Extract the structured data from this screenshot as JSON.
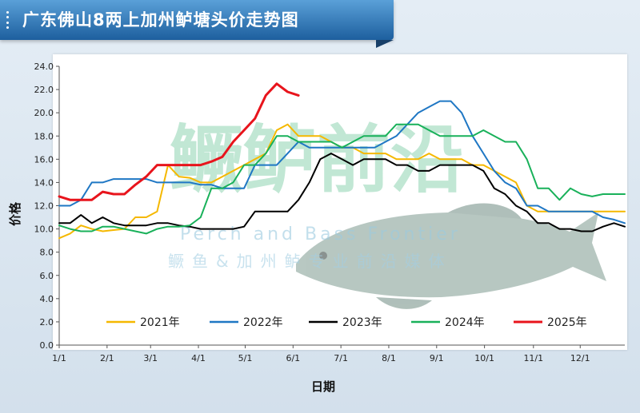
{
  "title": "广东佛山8两上加州鲈塘头价走势图",
  "watermark": {
    "brand": "鳜鲈前沿",
    "english": "Perch and Bass Frontier",
    "tagline": "鳜鱼&加州鲈专业前沿媒体"
  },
  "colors": {
    "banner": "#2d77b8",
    "2021年": "#f5b800",
    "2022年": "#1f77c4",
    "2023年": "#000000",
    "2024年": "#19b15a",
    "2025年": "#e8141c"
  },
  "chart_data": {
    "type": "line",
    "title": "广东佛山8两上加州鲈塘头价走势图",
    "xlabel": "日期",
    "ylabel": "价格",
    "ylim": [
      0,
      24
    ],
    "yticks": [
      "0.0",
      "2.0",
      "4.0",
      "6.0",
      "8.0",
      "10.0",
      "12.0",
      "14.0",
      "16.0",
      "18.0",
      "20.0",
      "22.0",
      "24.0"
    ],
    "xlim": [
      1,
      53
    ],
    "xticks": [
      "1/1",
      "2/1",
      "3/1",
      "4/1",
      "5/1",
      "6/1",
      "7/1",
      "8/1",
      "9/1",
      "10/1",
      "11/1",
      "12/1"
    ],
    "xtick_weeks": [
      1,
      5.4,
      9.4,
      13.8,
      18.1,
      22.5,
      26.9,
      31.3,
      35.7,
      40.1,
      44.6,
      48.9
    ],
    "x_unit": "week of year",
    "grid": false,
    "legend": "bottom",
    "series": [
      {
        "name": "2021年",
        "x": [
          1,
          2,
          3,
          4,
          5,
          6,
          7,
          8,
          9,
          10,
          11,
          11.5,
          12,
          13,
          14,
          15,
          16,
          17,
          18,
          19,
          20,
          21,
          22,
          23,
          24,
          25,
          26,
          27,
          28,
          29,
          30,
          31,
          32,
          33,
          34,
          35,
          36,
          37,
          38,
          39,
          40,
          41,
          42,
          43,
          44,
          45,
          46,
          47,
          48,
          49,
          50,
          51,
          53
        ],
        "y": [
          9.2,
          9.6,
          10.3,
          10.0,
          9.8,
          9.9,
          10.0,
          11.0,
          11.0,
          11.5,
          15.5,
          15.0,
          14.5,
          14.4,
          14.0,
          14.0,
          14.5,
          15.0,
          15.5,
          16.0,
          16.5,
          18.5,
          19.0,
          18.0,
          18.0,
          18.0,
          17.5,
          17.0,
          17.0,
          16.5,
          16.5,
          16.5,
          16.0,
          16.0,
          16.0,
          16.5,
          16.0,
          16.0,
          16.0,
          15.5,
          15.5,
          15.0,
          14.5,
          14.0,
          12.0,
          11.5,
          11.5,
          11.5,
          11.5,
          11.5,
          11.5,
          11.5,
          11.5
        ]
      },
      {
        "name": "2022年",
        "x": [
          1,
          2,
          3,
          4,
          5,
          6,
          7,
          8,
          9,
          10,
          11,
          12,
          13,
          14,
          15,
          16,
          17,
          18,
          19,
          20,
          21,
          22,
          23,
          24,
          25,
          26,
          27,
          28,
          29,
          30,
          31,
          32,
          33,
          34,
          35,
          36,
          37,
          38,
          39,
          40,
          41,
          42,
          43,
          44,
          45,
          46,
          47,
          48,
          49,
          50,
          51,
          52,
          53
        ],
        "y": [
          12.0,
          12.0,
          12.5,
          14.0,
          14.0,
          14.3,
          14.3,
          14.3,
          14.3,
          14.0,
          14.0,
          14.0,
          14.0,
          13.8,
          13.8,
          13.5,
          13.5,
          13.5,
          15.5,
          15.5,
          15.5,
          16.5,
          17.5,
          17.0,
          17.0,
          17.0,
          17.0,
          17.0,
          17.0,
          17.0,
          17.5,
          18.0,
          19.0,
          20.0,
          20.5,
          21.0,
          21.0,
          20.0,
          18.0,
          16.5,
          15.0,
          14.0,
          13.5,
          12.0,
          12.0,
          11.5,
          11.5,
          11.5,
          11.5,
          11.5,
          11.0,
          10.8,
          10.5
        ]
      },
      {
        "name": "2023年",
        "x": [
          1,
          2,
          3,
          4,
          5,
          6,
          7,
          8,
          9,
          10,
          11,
          12,
          13,
          14,
          15,
          16,
          17,
          18,
          19,
          20,
          21,
          22,
          23,
          24,
          25,
          26,
          27,
          28,
          29,
          30,
          31,
          32,
          33,
          34,
          35,
          36,
          37,
          38,
          39,
          40,
          41,
          42,
          43,
          44,
          45,
          46,
          47,
          48,
          49,
          50,
          51,
          52,
          53
        ],
        "y": [
          10.5,
          10.5,
          11.2,
          10.5,
          11.0,
          10.5,
          10.3,
          10.3,
          10.3,
          10.5,
          10.5,
          10.3,
          10.2,
          10.0,
          10.0,
          10.0,
          10.0,
          10.2,
          11.5,
          11.5,
          11.5,
          11.5,
          12.5,
          14.0,
          16.0,
          16.5,
          16.0,
          15.5,
          16.0,
          16.0,
          16.0,
          15.5,
          15.5,
          15.0,
          15.0,
          15.5,
          15.5,
          15.5,
          15.5,
          15.0,
          13.5,
          13.0,
          12.0,
          11.5,
          10.5,
          10.5,
          10.0,
          10.0,
          9.8,
          9.8,
          10.2,
          10.5,
          10.2
        ]
      },
      {
        "name": "2024年",
        "x": [
          1,
          2,
          3,
          4,
          5,
          6,
          7,
          8,
          9,
          10,
          11,
          12,
          13,
          14,
          15,
          16,
          17,
          18,
          19,
          20,
          21,
          22,
          23,
          24,
          25,
          26,
          27,
          28,
          29,
          30,
          31,
          32,
          33,
          34,
          35,
          36,
          37,
          38,
          39,
          40,
          41,
          42,
          43,
          44,
          45,
          46,
          47,
          48,
          49,
          50,
          51,
          52,
          53
        ],
        "y": [
          10.3,
          10.0,
          9.8,
          9.8,
          10.2,
          10.2,
          10.0,
          9.8,
          9.6,
          10.0,
          10.2,
          10.2,
          10.3,
          11.0,
          13.5,
          13.5,
          14.0,
          15.5,
          15.5,
          16.5,
          18.0,
          18.0,
          17.5,
          17.5,
          17.5,
          17.5,
          17.0,
          17.5,
          18.0,
          18.0,
          18.0,
          19.0,
          19.0,
          19.0,
          18.5,
          18.0,
          18.0,
          18.0,
          18.0,
          18.5,
          18.0,
          17.5,
          17.5,
          16.0,
          13.5,
          13.5,
          12.5,
          13.5,
          13.0,
          12.8,
          13.0,
          13.0,
          13.0
        ]
      },
      {
        "name": "2025年",
        "x": [
          1,
          2,
          3,
          4,
          5,
          6,
          7,
          8,
          9,
          10,
          11,
          12,
          13,
          14,
          15,
          16,
          17,
          18,
          19,
          20,
          21,
          22,
          23
        ],
        "y": [
          12.8,
          12.5,
          12.5,
          12.5,
          13.2,
          13.0,
          13.0,
          13.8,
          14.5,
          15.5,
          15.5,
          15.5,
          15.5,
          15.5,
          15.8,
          16.2,
          17.5,
          18.5,
          19.5,
          21.5,
          22.5,
          21.8,
          21.5
        ]
      }
    ]
  }
}
